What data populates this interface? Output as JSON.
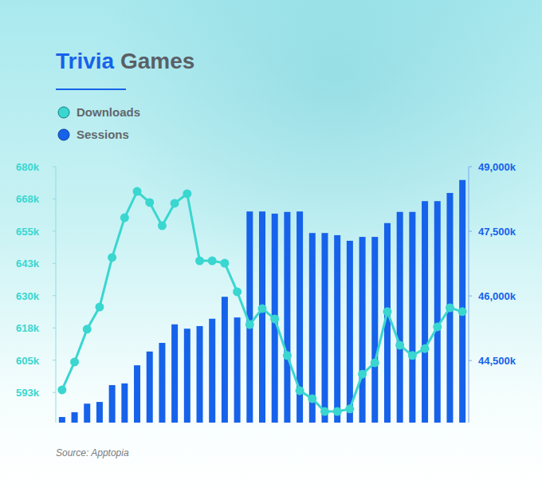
{
  "chart_data": {
    "type": "combo",
    "title": "Trivia Games",
    "categories": [
      null,
      null,
      null,
      null,
      null,
      null,
      null,
      null,
      null,
      null,
      null,
      null,
      null,
      null,
      null,
      null,
      null,
      null,
      null,
      null,
      null,
      null,
      null,
      null,
      null,
      null,
      null,
      null,
      null,
      null,
      null,
      null,
      null
    ],
    "series": [
      {
        "name": "Downloads",
        "type": "line",
        "marker": "circle",
        "color": "#3ad6d0",
        "values": [
          593500,
          604300,
          617000,
          625600,
          644800,
          660200,
          670400,
          666100,
          657100,
          665800,
          669500,
          643500,
          643500,
          642600,
          631500,
          618800,
          625000,
          621000,
          606800,
          593200,
          590100,
          585100,
          585100,
          586100,
          599600,
          604000,
          623800,
          610800,
          606800,
          609500,
          617900,
          625300,
          623800
        ]
      },
      {
        "name": "Sessions",
        "type": "bar",
        "axis": "y2",
        "color": "#1662ea",
        "values": [
          43190000,
          43300000,
          43500000,
          43540000,
          43930000,
          43970000,
          44390000,
          44710000,
          44910000,
          45340000,
          45240000,
          45300000,
          45470000,
          45980000,
          45500000,
          47960000,
          47960000,
          47910000,
          47950000,
          47960000,
          47460000,
          47460000,
          47410000,
          47280000,
          47370000,
          47370000,
          47690000,
          47950000,
          47950000,
          48200000,
          48200000,
          48390000,
          48690000
        ]
      }
    ],
    "ylim": [
      580800,
      680000
    ],
    "yticks": [
      {
        "value": 592500,
        "label": "593k"
      },
      {
        "value": 605000,
        "label": "605k"
      },
      {
        "value": 617500,
        "label": "618k"
      },
      {
        "value": 630000,
        "label": "630k"
      },
      {
        "value": 642500,
        "label": "643k"
      },
      {
        "value": 655000,
        "label": "655k"
      },
      {
        "value": 667500,
        "label": "668k"
      },
      {
        "value": 680000,
        "label": "680k"
      }
    ],
    "y2lim": [
      43060000,
      49000000
    ],
    "y2ticks": [
      {
        "value": 44500000,
        "label": "44,500k"
      },
      {
        "value": 46000000,
        "label": "46,000k"
      },
      {
        "value": 47500000,
        "label": "47,500k"
      },
      {
        "value": 49000000,
        "label": "49,000k"
      }
    ],
    "grid": false,
    "legend": "top-left",
    "annotations": [
      "Source: Apptopia"
    ]
  }
}
